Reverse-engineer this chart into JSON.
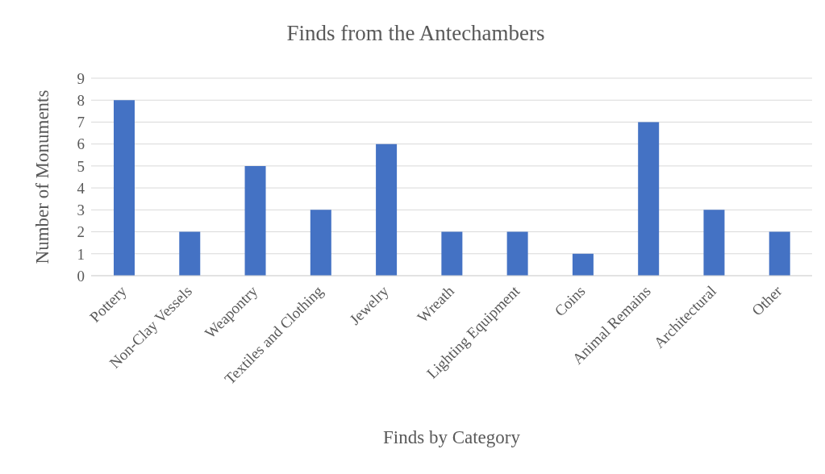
{
  "chart_data": {
    "type": "bar",
    "title": "Finds from the Antechambers",
    "xlabel": "Finds by Category",
    "ylabel": "Number of Monuments",
    "categories": [
      "Pottery",
      "Non-Clay Vessels",
      "Weapontry",
      "Textiles and Clothing",
      "Jewelry",
      "Wreath",
      "Lighting Equipment",
      "Coins",
      "Animal Remains",
      "Architectural",
      "Other"
    ],
    "values": [
      8,
      2,
      5,
      3,
      6,
      2,
      2,
      1,
      7,
      3,
      2
    ],
    "color": "#4472c4",
    "ylim": [
      0,
      9
    ],
    "yticks": [
      0,
      1,
      2,
      3,
      4,
      5,
      6,
      7,
      8,
      9
    ],
    "grid": "y",
    "legend": false
  }
}
